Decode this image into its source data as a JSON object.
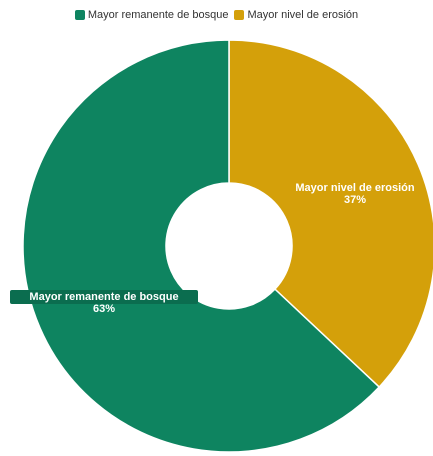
{
  "chart_data": {
    "type": "pie",
    "donut": true,
    "legend_position": "top-center",
    "title": "",
    "series": [
      {
        "name": "Mayor remanente de bosque",
        "value": 63,
        "label": "63%",
        "color": "#0e8460"
      },
      {
        "name": "Mayor nivel de erosión",
        "value": 37,
        "label": "37%",
        "color": "#d4a00a"
      }
    ]
  }
}
